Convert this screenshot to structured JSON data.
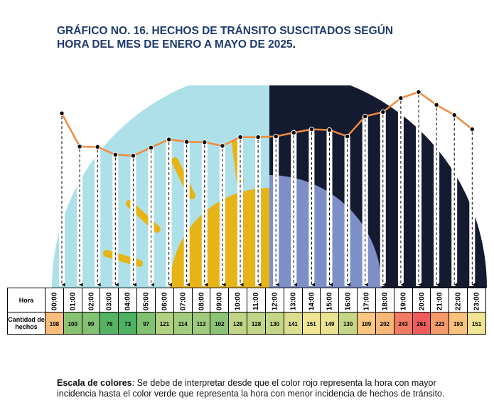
{
  "title_line1": "GRÁFICO NO. 16. HECHOS DE TRÁNSITO SUSCITADOS SEGÚN",
  "title_line2": "HORA DEL MES DE ENERO A MAYO DE 2025",
  "title_end": ".",
  "table": {
    "row1_label": "Hora",
    "row2_label": "Cantidad de hechos"
  },
  "note": {
    "label": "Escala de colores",
    "text": ": Se debe de interpretar desde que el color rojo representa la hora con mayor incidencia hasta el color verde que representa la hora con menor incidencia de hechos de tránsito."
  },
  "colors": {
    "title": "#1f3a6e",
    "line": "#f08a3c",
    "day_sky": "#aee0ea",
    "night_sky": "#141a30",
    "sun": "#e6b416",
    "moon": "#7d8fc6",
    "scale_high": "#f07a73",
    "scale_mid": "#fde89a",
    "scale_low": "#5db96b"
  },
  "chart_data": {
    "type": "line",
    "x": [
      "00:00",
      "01:00",
      "02:00",
      "03:00",
      "04:00",
      "05:00",
      "06:00",
      "07:00",
      "08:00",
      "09:00",
      "10:00",
      "11:00",
      "12:00",
      "13:00",
      "14:00",
      "15:00",
      "16:00",
      "17:00",
      "18:00",
      "19:00",
      "20:00",
      "21:00",
      "22:00",
      "23:00"
    ],
    "series": [
      {
        "values": [
          198,
          100,
          99,
          76,
          73,
          97,
          121,
          114,
          113,
          102,
          128,
          128,
          130,
          141,
          151,
          149,
          130,
          189,
          202,
          243,
          261,
          223,
          193,
          151
        ]
      }
    ],
    "color_scale": "red = highest incidence, green = lowest incidence"
  }
}
